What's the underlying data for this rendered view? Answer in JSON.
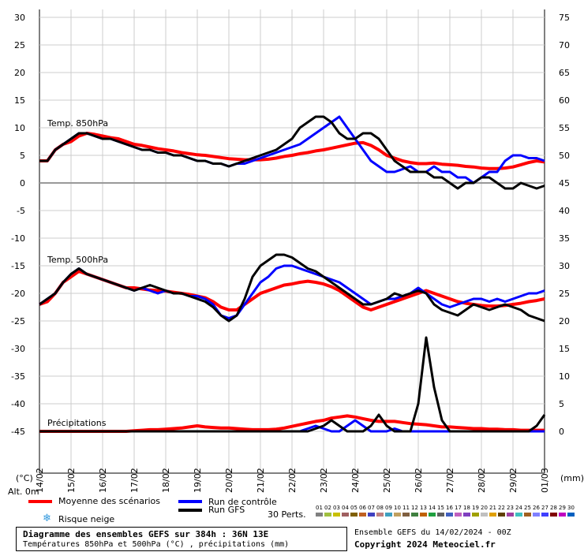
{
  "chart_data": {
    "type": "line",
    "title": "Diagramme des ensembles GEFS sur 384h : 36N 13E",
    "subtitle": "Températures 850hPa et 500hPa (°C) , précipitations (mm)",
    "left_axis": {
      "unit_label": "(°C)",
      "ticks": [
        30,
        25,
        20,
        15,
        10,
        5,
        0,
        -5,
        -10,
        -15,
        -20,
        -25,
        -30,
        -35,
        -40,
        -45
      ],
      "range": [
        -45,
        30
      ]
    },
    "right_axis": {
      "unit_label": "(mm)",
      "ticks": [
        75,
        70,
        65,
        60,
        55,
        50,
        45,
        40,
        35,
        30,
        25,
        20,
        15,
        10,
        5,
        0
      ],
      "range": [
        0,
        75
      ]
    },
    "x_labels": [
      "14/02",
      "15/02",
      "16/02",
      "17/02",
      "18/02",
      "19/02",
      "20/02",
      "21/02",
      "22/02",
      "23/02",
      "24/02",
      "25/02",
      "26/02",
      "27/02",
      "28/02",
      "29/02",
      "01/03"
    ],
    "alt_label": "Alt. 0m",
    "panel_labels": {
      "t850": "Temp. 850hPa",
      "t500": "Temp. 500hPa",
      "precip": "Précipitations"
    },
    "x_steps": [
      "0",
      "6",
      "12",
      "18",
      "24",
      "30",
      "36",
      "42",
      "48",
      "54",
      "60",
      "66",
      "72",
      "78",
      "84",
      "90",
      "96",
      "102",
      "108",
      "114",
      "120",
      "126",
      "132",
      "138",
      "144",
      "150",
      "156",
      "162",
      "168",
      "174",
      "180",
      "186",
      "192",
      "198",
      "204",
      "210",
      "216",
      "222",
      "228",
      "234",
      "240",
      "246",
      "252",
      "258",
      "264",
      "270",
      "276",
      "282",
      "288",
      "294",
      "300",
      "306",
      "312",
      "318",
      "324",
      "330",
      "336",
      "342",
      "348",
      "354",
      "360",
      "366",
      "372",
      "378",
      "384"
    ],
    "series": [
      {
        "name": "Moyenne des scénarios",
        "panel": "t850",
        "color": "#ff0000",
        "values": [
          4,
          4,
          6,
          7,
          7.5,
          8.5,
          9,
          8.8,
          8.5,
          8.2,
          8,
          7.5,
          7,
          6.8,
          6.5,
          6.2,
          6,
          5.8,
          5.5,
          5.3,
          5.1,
          5,
          4.8,
          4.6,
          4.4,
          4.3,
          4.2,
          4.2,
          4.2,
          4.3,
          4.5,
          4.8,
          5,
          5.3,
          5.5,
          5.8,
          6,
          6.3,
          6.6,
          6.9,
          7.2,
          7.3,
          6.8,
          6,
          5,
          4.5,
          4,
          3.7,
          3.5,
          3.5,
          3.6,
          3.4,
          3.3,
          3.2,
          3,
          2.9,
          2.7,
          2.6,
          2.6,
          2.7,
          2.9,
          3.3,
          3.7,
          4,
          3.8
        ]
      },
      {
        "name": "Run de contrôle",
        "panel": "t850",
        "color": "#0000ff",
        "values": [
          4,
          4,
          6,
          7,
          8,
          9,
          9,
          8.5,
          8,
          8,
          7.5,
          7,
          6.5,
          6,
          6,
          5.5,
          5.5,
          5,
          5,
          4.5,
          4,
          4,
          3.5,
          3.5,
          3,
          3.5,
          3.5,
          4,
          4.5,
          5,
          5.5,
          6,
          6.5,
          7,
          8,
          9,
          10,
          11,
          12,
          10,
          8,
          6,
          4,
          3,
          2,
          2,
          2.5,
          3,
          2,
          2,
          3,
          2,
          2,
          1,
          1,
          0,
          1,
          2,
          2,
          4,
          5,
          5,
          4.5,
          4.5,
          4
        ]
      },
      {
        "name": "Run GFS",
        "panel": "t850",
        "color": "#000000",
        "values": [
          4,
          4,
          6,
          7,
          8,
          9,
          9,
          8.5,
          8,
          8,
          7.5,
          7,
          6.5,
          6,
          6,
          5.5,
          5.5,
          5,
          5,
          4.5,
          4,
          4,
          3.5,
          3.5,
          3,
          3.5,
          4,
          4.5,
          5,
          5.5,
          6,
          7,
          8,
          10,
          11,
          12,
          12,
          11,
          9,
          8,
          8,
          9,
          9,
          8,
          6,
          4,
          3,
          2,
          2,
          2,
          1,
          1,
          0,
          -1,
          0,
          0,
          1,
          1,
          0,
          -1,
          -1,
          0,
          -0.5,
          -1,
          -0.5
        ]
      },
      {
        "name": "Moyenne des scénarios",
        "panel": "t500",
        "color": "#ff0000",
        "values": [
          -22,
          -21.5,
          -20,
          -18,
          -17,
          -16,
          -16.5,
          -17,
          -17.5,
          -18,
          -18.5,
          -19,
          -19,
          -19.2,
          -19.4,
          -19.5,
          -19.6,
          -19.8,
          -20,
          -20.2,
          -20.5,
          -20.8,
          -21.5,
          -22.5,
          -23,
          -23,
          -22,
          -21,
          -20,
          -19.5,
          -19,
          -18.5,
          -18.3,
          -18,
          -17.8,
          -18,
          -18.3,
          -18.8,
          -19.5,
          -20.5,
          -21.5,
          -22.5,
          -23,
          -22.5,
          -22,
          -21.5,
          -21,
          -20.5,
          -20,
          -19.5,
          -20,
          -20.5,
          -21,
          -21.5,
          -21.8,
          -22,
          -22.2,
          -22.3,
          -22.3,
          -22.2,
          -22,
          -21.8,
          -21.5,
          -21.3,
          -21
        ]
      },
      {
        "name": "Run de contrôle",
        "panel": "t500",
        "color": "#0000ff",
        "values": [
          -22,
          -21,
          -20,
          -18,
          -16.5,
          -15.5,
          -16.5,
          -17,
          -17.5,
          -18,
          -18.5,
          -19,
          -19.5,
          -19,
          -19.5,
          -20,
          -19.5,
          -20,
          -20,
          -20.5,
          -20.5,
          -21,
          -22,
          -24,
          -24.5,
          -24,
          -22,
          -20,
          -18,
          -17,
          -15.5,
          -15,
          -15,
          -15.5,
          -16,
          -16.5,
          -17,
          -17.5,
          -18,
          -19,
          -20,
          -21,
          -22,
          -21.5,
          -21,
          -21,
          -20.5,
          -20,
          -19,
          -20,
          -21,
          -22,
          -22.5,
          -22,
          -21.5,
          -21,
          -21,
          -21.5,
          -21,
          -21.5,
          -21,
          -20.5,
          -20,
          -20,
          -19.5
        ]
      },
      {
        "name": "Run GFS",
        "panel": "t500",
        "color": "#000000",
        "values": [
          -22,
          -21,
          -20,
          -18,
          -16.5,
          -15.5,
          -16.5,
          -17,
          -17.5,
          -18,
          -18.5,
          -19,
          -19.5,
          -19,
          -18.5,
          -19,
          -19.5,
          -20,
          -20,
          -20.5,
          -21,
          -21.5,
          -22.5,
          -24,
          -25,
          -24,
          -21,
          -17,
          -15,
          -14,
          -13,
          -13,
          -13.5,
          -14.5,
          -15.5,
          -16,
          -17,
          -18,
          -19,
          -20,
          -21,
          -22,
          -22,
          -21.5,
          -21,
          -20,
          -20.5,
          -20,
          -19.5,
          -20,
          -22,
          -23,
          -23.5,
          -24,
          -23,
          -22,
          -22.5,
          -23,
          -22.5,
          -22,
          -22.5,
          -23,
          -24,
          -24.5,
          -25
        ]
      },
      {
        "name": "Moyenne des scénarios",
        "panel": "precip",
        "color": "#ff0000",
        "values": [
          0,
          0,
          0,
          0,
          0,
          0,
          0,
          0,
          0,
          0,
          0,
          0,
          0.1,
          0.2,
          0.3,
          0.3,
          0.4,
          0.5,
          0.6,
          0.8,
          1,
          0.8,
          0.7,
          0.6,
          0.6,
          0.5,
          0.4,
          0.3,
          0.3,
          0.3,
          0.4,
          0.6,
          0.9,
          1.2,
          1.5,
          1.8,
          2,
          2.4,
          2.6,
          2.8,
          2.6,
          2.3,
          2,
          1.8,
          1.8,
          1.8,
          1.6,
          1.4,
          1.3,
          1.2,
          1,
          0.8,
          0.8,
          0.7,
          0.6,
          0.5,
          0.5,
          0.4,
          0.4,
          0.3,
          0.3,
          0.2,
          0.2,
          0.2,
          0.2
        ]
      },
      {
        "name": "Run de contrôle",
        "panel": "precip",
        "color": "#0000ff",
        "values": [
          0,
          0,
          0,
          0,
          0,
          0,
          0,
          0,
          0,
          0,
          0,
          0,
          0,
          0,
          0,
          0,
          0,
          0,
          0,
          0,
          0,
          0,
          0,
          0,
          0,
          0,
          0,
          0,
          0,
          0,
          0,
          0,
          0,
          0,
          0.5,
          1,
          0.5,
          0,
          0,
          1,
          2,
          1,
          0,
          0,
          0,
          0.5,
          0,
          0,
          0,
          0,
          0,
          0,
          0,
          0,
          0,
          0,
          0,
          0,
          0,
          0,
          0,
          0,
          0,
          0,
          0
        ]
      },
      {
        "name": "Run GFS",
        "panel": "precip",
        "color": "#000000",
        "values": [
          0,
          0,
          0,
          0,
          0,
          0,
          0,
          0,
          0,
          0,
          0,
          0,
          0,
          0,
          0,
          0,
          0,
          0,
          0,
          0,
          0,
          0,
          0,
          0,
          0,
          0,
          0,
          0,
          0,
          0,
          0,
          0,
          0,
          0,
          0,
          0.5,
          1,
          2,
          1,
          0,
          0,
          0,
          1,
          3,
          1,
          0,
          0,
          0,
          5,
          17,
          8,
          2,
          0,
          0,
          0,
          0,
          0,
          0,
          0,
          0,
          0,
          0,
          0,
          1,
          3
        ]
      }
    ]
  },
  "legend": {
    "mean": {
      "label": "Moyenne des scénarios",
      "color": "#ff0000"
    },
    "control": {
      "label": "Run de contrôle",
      "color": "#0000ff"
    },
    "gfs": {
      "label": "Run GFS",
      "color": "#000000"
    },
    "snow": {
      "label": "Risque neige",
      "icon": "snowflake-icon",
      "color": "#3399dd"
    },
    "perts_label": "30 Perts.",
    "perts": [
      {
        "n": "01",
        "c": "#808080"
      },
      {
        "n": "02",
        "c": "#a0c040"
      },
      {
        "n": "03",
        "c": "#c8c000"
      },
      {
        "n": "04",
        "c": "#a06060"
      },
      {
        "n": "05",
        "c": "#806000"
      },
      {
        "n": "06",
        "c": "#c06020"
      },
      {
        "n": "07",
        "c": "#4040c0"
      },
      {
        "n": "08",
        "c": "#c08080"
      },
      {
        "n": "09",
        "c": "#40a0c0"
      },
      {
        "n": "10",
        "c": "#c0a060"
      },
      {
        "n": "11",
        "c": "#806040"
      },
      {
        "n": "12",
        "c": "#408040"
      },
      {
        "n": "13",
        "c": "#c06000"
      },
      {
        "n": "14",
        "c": "#20a040"
      },
      {
        "n": "15",
        "c": "#606060"
      },
      {
        "n": "16",
        "c": "#4060c0"
      },
      {
        "n": "17",
        "c": "#c060c0"
      },
      {
        "n": "18",
        "c": "#8040c0"
      },
      {
        "n": "19",
        "c": "#a0a000"
      },
      {
        "n": "20",
        "c": "#c0c0c0"
      },
      {
        "n": "21",
        "c": "#e0a000"
      },
      {
        "n": "22",
        "c": "#604000"
      },
      {
        "n": "23",
        "c": "#a040a0"
      },
      {
        "n": "24",
        "c": "#40c0c0"
      },
      {
        "n": "25",
        "c": "#a06020"
      },
      {
        "n": "26",
        "c": "#8080ff"
      },
      {
        "n": "27",
        "c": "#4040ff"
      },
      {
        "n": "28",
        "c": "#800000"
      },
      {
        "n": "29",
        "c": "#c000c0"
      },
      {
        "n": "30",
        "c": "#0060c0"
      }
    ]
  },
  "footer": {
    "title": "Diagramme des ensembles GEFS sur 384h : 36N 13E",
    "subtitle": "Températures 850hPa et 500hPa (°C) , précipitations (mm)",
    "run": "Ensemble GEFS du 14/02/2024 - 00Z",
    "copyright": "Copyright 2024 Meteociel.fr"
  }
}
